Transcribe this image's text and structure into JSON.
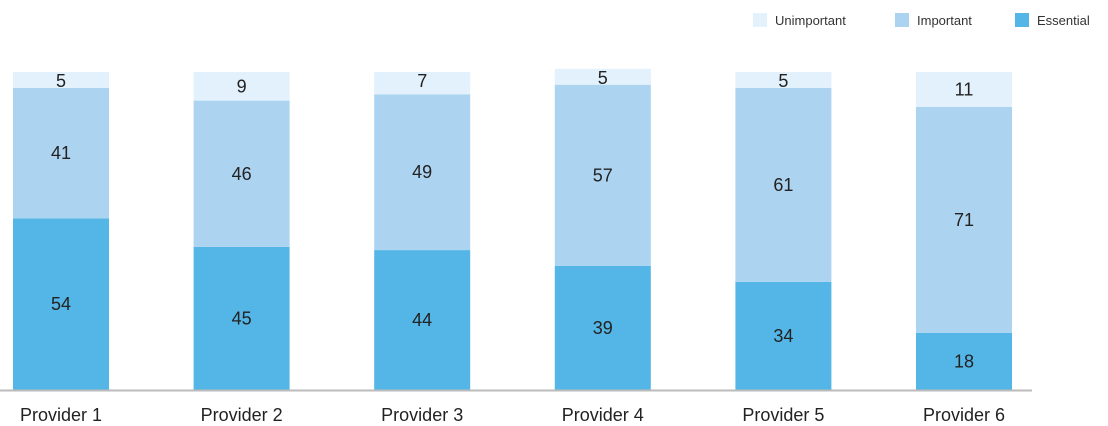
{
  "chart_data": {
    "type": "bar",
    "stacked": true,
    "percent": true,
    "categories": [
      "Provider 1",
      "Provider 2",
      "Provider 3",
      "Provider 4",
      "Provider 5",
      "Provider 6"
    ],
    "series": [
      {
        "name": "Essential",
        "values": [
          54,
          45,
          44,
          39,
          34,
          18
        ],
        "color": "#54b6e6"
      },
      {
        "name": "Important",
        "values": [
          41,
          46,
          49,
          57,
          61,
          71
        ],
        "color": "#acd3f0"
      },
      {
        "name": "Unimportant",
        "values": [
          5,
          9,
          7,
          5,
          5,
          11
        ],
        "color": "#e2f1fb"
      }
    ],
    "legend_order": [
      "Unimportant",
      "Important",
      "Essential"
    ],
    "legend_position": "top-right",
    "ylim": [
      0,
      100
    ],
    "grid": false,
    "data_labels": true,
    "axis_line_color": "#bbbbbb"
  }
}
